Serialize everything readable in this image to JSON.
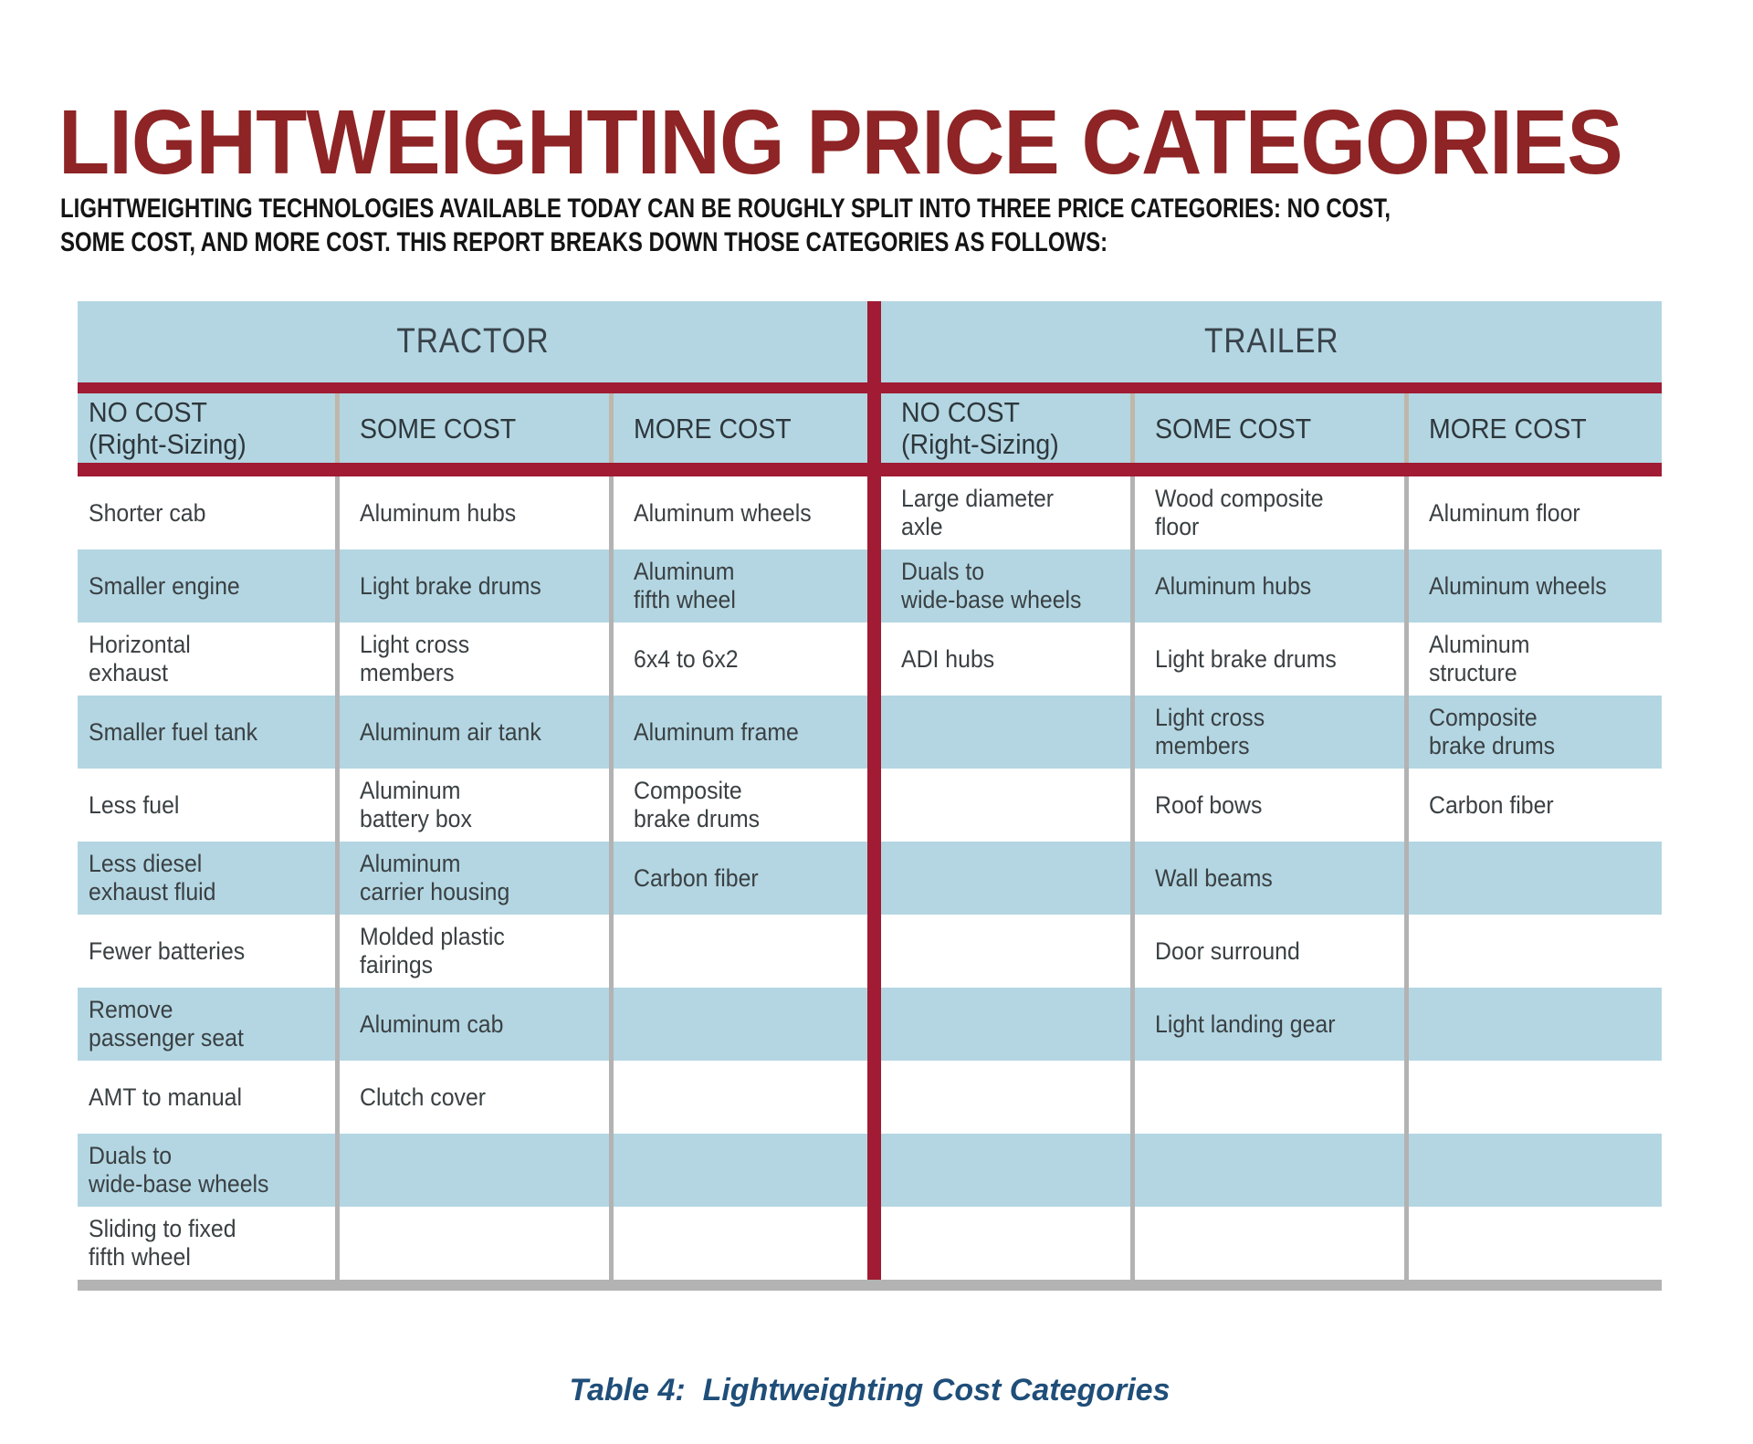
{
  "title": "LIGHTWEIGHTING PRICE CATEGORIES",
  "subtitle": "LIGHTWEIGHTING TECHNOLOGIES AVAILABLE TODAY CAN BE ROUGHLY SPLIT INTO THREE PRICE CATEGORIES: NO COST,\nSOME COST, AND MORE COST. THIS REPORT BREAKS DOWN THOSE CATEGORIES AS FOLLOWS:",
  "table": {
    "sections": [
      {
        "label": "TRACTOR"
      },
      {
        "label": "TRAILER"
      }
    ],
    "columns": [
      "NO COST\n(Right-Sizing)",
      "SOME COST",
      "MORE COST",
      "NO COST\n(Right-Sizing)",
      "SOME COST",
      "MORE COST"
    ],
    "rows": [
      [
        "Shorter cab",
        "Aluminum hubs",
        "Aluminum wheels",
        "Large diameter\naxle",
        "Wood composite\nfloor",
        "Aluminum floor"
      ],
      [
        "Smaller engine",
        "Light brake drums",
        "Aluminum\nfifth wheel",
        "Duals to\nwide-base wheels",
        "Aluminum hubs",
        "Aluminum wheels"
      ],
      [
        "Horizontal\nexhaust",
        "Light cross\nmembers",
        "6x4 to 6x2",
        "ADI hubs",
        "Light brake drums",
        "Aluminum\nstructure"
      ],
      [
        "Smaller fuel tank",
        "Aluminum air tank",
        "Aluminum frame",
        "",
        "Light cross\nmembers",
        "Composite\nbrake drums"
      ],
      [
        "Less fuel",
        "Aluminum\nbattery box",
        "Composite\nbrake drums",
        "",
        "Roof bows",
        "Carbon fiber"
      ],
      [
        "Less diesel\nexhaust fluid",
        "Aluminum\ncarrier housing",
        "Carbon fiber",
        "",
        "Wall beams",
        ""
      ],
      [
        "Fewer batteries",
        "Molded plastic\nfairings",
        "",
        "",
        "Door surround",
        ""
      ],
      [
        "Remove\npassenger seat",
        "Aluminum cab",
        "",
        "",
        "Light landing gear",
        ""
      ],
      [
        "AMT to manual",
        "Clutch cover",
        "",
        "",
        "",
        ""
      ],
      [
        "Duals to\nwide-base wheels",
        "",
        "",
        "",
        "",
        ""
      ],
      [
        "Sliding to fixed\nfifth wheel",
        "",
        "",
        "",
        "",
        ""
      ]
    ]
  },
  "caption": "Table 4:  Lightweighting Cost Categories",
  "colors": {
    "title_maroon": "#8e2425",
    "rule_red": "#a01b33",
    "row_light_blue": "#b3d6e2",
    "divider_gray": "#b3b3b3",
    "caption_blue": "#1f4e79"
  }
}
